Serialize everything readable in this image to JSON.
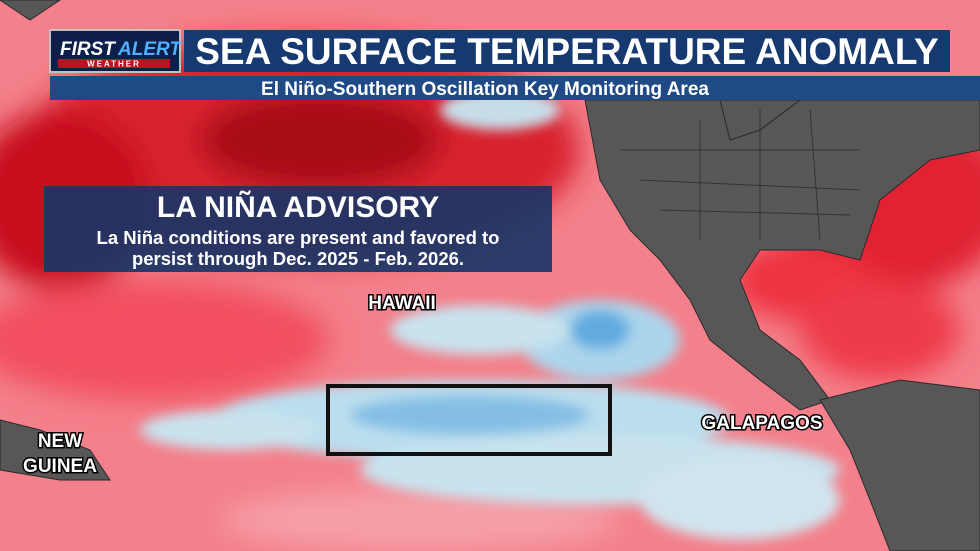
{
  "logo": {
    "first": "FIRST",
    "alert": "ALERT",
    "sub": "WEATHER"
  },
  "header": {
    "title": "SEA SURFACE TEMPERATURE ANOMALY",
    "subtitle": "El Niño-Southern Oscillation Key Monitoring Area"
  },
  "advisory": {
    "title": "LA NIÑA ADVISORY",
    "lines": [
      "La Niña conditions are present and favored to",
      "persist through Dec. 2025 - Feb. 2026."
    ]
  },
  "map_labels": {
    "hawaii": "HAWAII",
    "new_guinea": [
      "NEW",
      "GUINEA"
    ],
    "galapagos": "GALAPAGOS"
  }
}
